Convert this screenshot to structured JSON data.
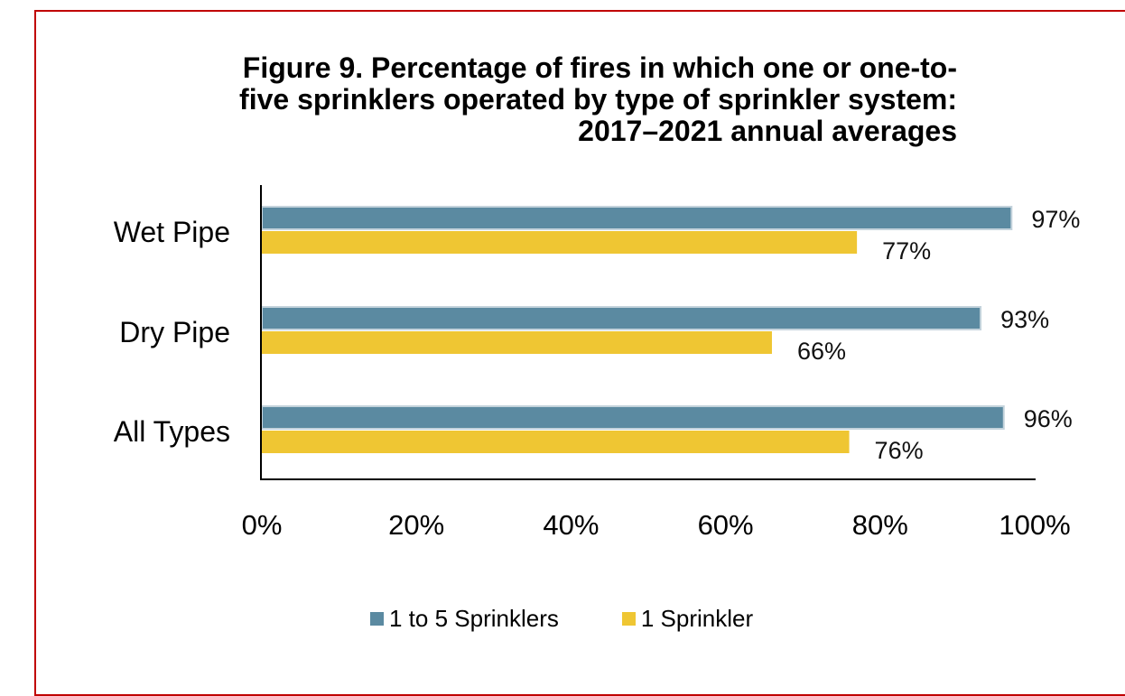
{
  "chart_data": {
    "type": "bar",
    "orientation": "horizontal",
    "title": "Figure 9. Percentage of fires in which one or one-to-\nfive sprinklers operated by type of sprinkler system:\n2017–2021 annual averages",
    "categories": [
      "Wet Pipe",
      "Dry Pipe",
      "All Types"
    ],
    "series": [
      {
        "name": "1 to 5 Sprinklers",
        "color": "#5b8aa1",
        "values": [
          97,
          93,
          96
        ],
        "labels": [
          "97%",
          "93%",
          "96%"
        ]
      },
      {
        "name": "1 Sprinkler",
        "color": "#efc633",
        "values": [
          77,
          66,
          76
        ],
        "labels": [
          "77%",
          "66%",
          "76%"
        ]
      }
    ],
    "xlim": [
      0,
      100
    ],
    "xticks": [
      0,
      20,
      40,
      60,
      80,
      100
    ],
    "xtick_labels": [
      "0%",
      "20%",
      "40%",
      "60%",
      "80%",
      "100%"
    ],
    "xlabel": "",
    "ylabel": "",
    "grid": false,
    "legend_position": "bottom"
  }
}
